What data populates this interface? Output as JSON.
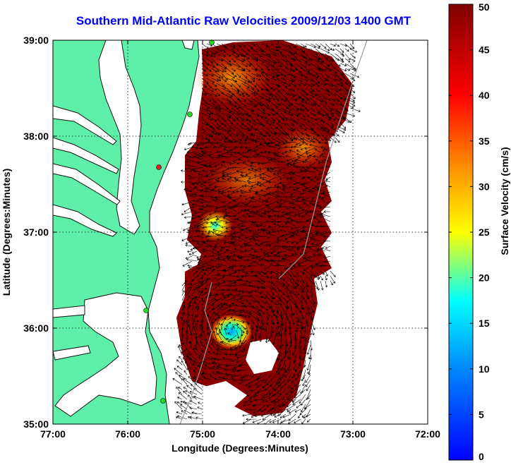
{
  "title": "Southern Mid-Atlantic Raw Velocities 2009/12/03 1400 GMT",
  "map": {
    "xlabel": "Longitude (Degrees:Minutes)",
    "ylabel": "Latitude (Degrees:Minutes)",
    "lon_ticks": [
      "77:00",
      "76:00",
      "75:00",
      "74:00",
      "73:00",
      "72:00"
    ],
    "lat_ticks": [
      "39:00",
      "38:00",
      "37:00",
      "36:00",
      "35:00"
    ],
    "lon_range": [
      -77,
      -72
    ],
    "lat_range": [
      35,
      39
    ],
    "land_color": "#5ef0a8",
    "grid": "dotted"
  },
  "colorbar": {
    "label": "Surface Velocity (cm/s)",
    "ticks": [
      "50",
      "45",
      "40",
      "35",
      "30",
      "25",
      "20",
      "15",
      "10",
      "5",
      "0"
    ],
    "range": [
      0,
      50
    ],
    "colormap": "jet"
  },
  "stations": [
    {
      "name": "",
      "color": "#22dd22"
    },
    {
      "name": "",
      "color": "#22dd22"
    },
    {
      "name": "",
      "color": "#dd2222"
    },
    {
      "name": "",
      "color": "#22dd22"
    },
    {
      "name": "",
      "color": "#22dd22"
    }
  ]
}
